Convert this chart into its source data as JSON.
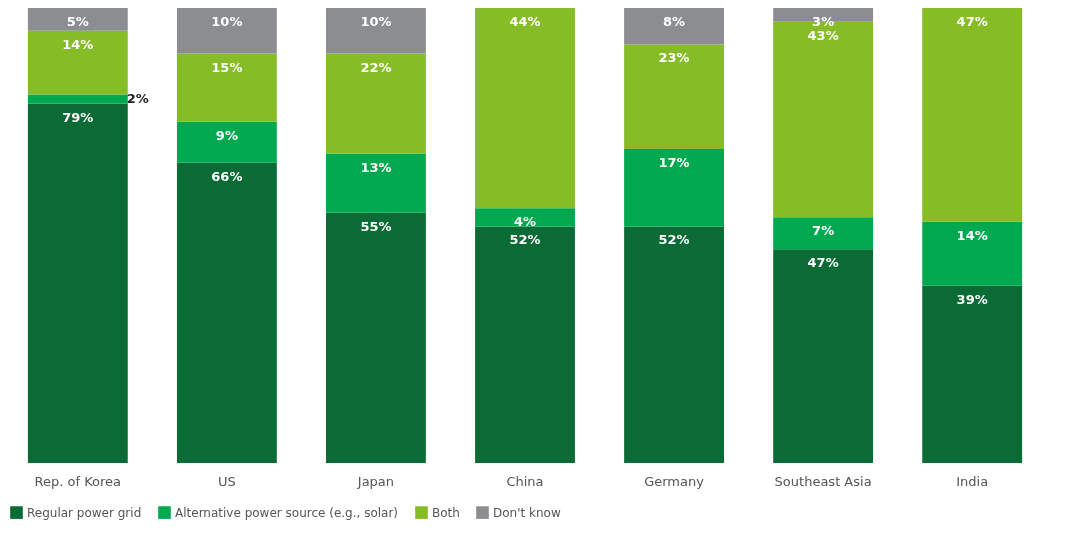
{
  "chart_data": {
    "type": "bar",
    "stacked": true,
    "categories": [
      "Rep. of Korea",
      "US",
      "Japan",
      "China",
      "Germany",
      "Southeast Asia",
      "India"
    ],
    "ylim": [
      0,
      100
    ],
    "tick_labels": "x",
    "legend": "bottom",
    "grid": false,
    "series": [
      {
        "name": "Regular power grid",
        "color": "#0b6b35",
        "values": [
          79,
          66,
          55,
          52,
          52,
          47,
          39
        ],
        "value_labels": [
          "79%",
          "66%",
          "55%",
          "52%",
          "52%",
          "47%",
          "39%"
        ]
      },
      {
        "name": "Alternative power source (e.g., solar)",
        "color": "#00a94f",
        "values": [
          2,
          9,
          13,
          4,
          17,
          7,
          14
        ],
        "value_labels": [
          "2%",
          "9%",
          "13%",
          "4%",
          "17%",
          "7%",
          "14%"
        ]
      },
      {
        "name": "Both",
        "color": "#86bc25",
        "values": [
          14,
          15,
          22,
          44,
          23,
          43,
          47
        ],
        "value_labels": [
          "14%",
          "15%",
          "22%",
          "44%",
          "23%",
          "43%",
          "47%"
        ]
      },
      {
        "name": "Don't know",
        "color": "#8b8d91",
        "values": [
          5,
          10,
          10,
          0,
          8,
          3,
          0
        ],
        "value_labels": [
          "5%",
          "10%",
          "10%",
          null,
          "8%",
          "3%",
          null
        ]
      }
    ]
  }
}
